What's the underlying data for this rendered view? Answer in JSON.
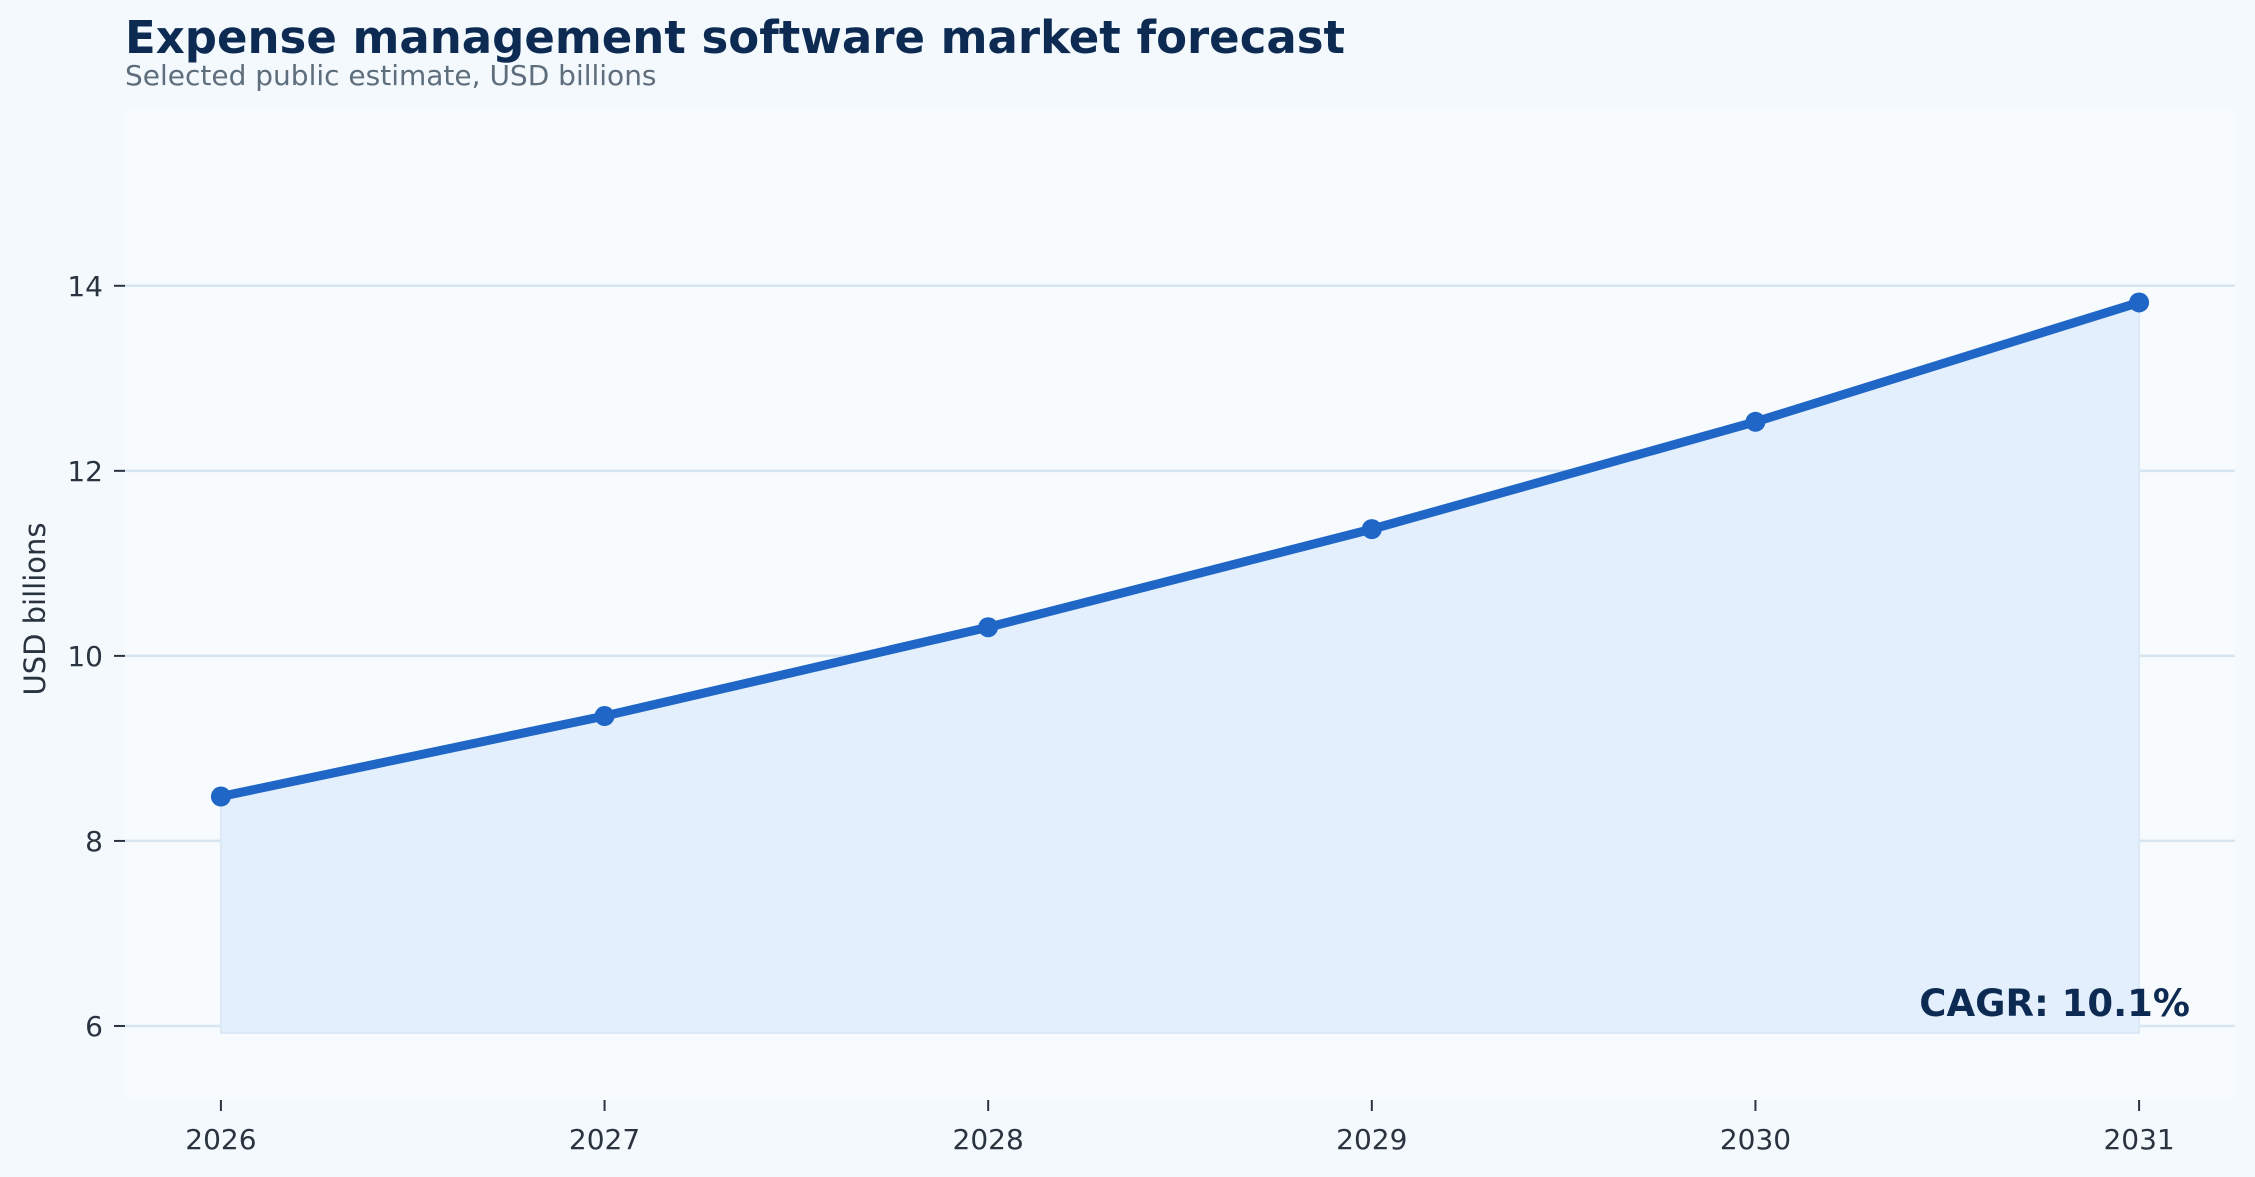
{
  "chart_data": {
    "type": "line",
    "title": "Expense management software market forecast",
    "subtitle": "Selected public estimate, USD billions",
    "xlabel": "",
    "ylabel": "USD billions",
    "x": [
      2026,
      2027,
      2028,
      2029,
      2030,
      2031
    ],
    "x_tick_labels": [
      "2026",
      "2027",
      "2028",
      "2029",
      "2030",
      "2031"
    ],
    "series": [
      {
        "values": [
          8.48,
          9.35,
          10.31,
          11.37,
          12.53,
          13.82
        ],
        "filled_area": true
      }
    ],
    "y_ticks": [
      6,
      8,
      10,
      12,
      14
    ],
    "y_tick_labels": [
      "6",
      "8",
      "10",
      "12",
      "14"
    ],
    "xlim": [
      2025.75,
      2031.25
    ],
    "ylim": [
      5.2,
      15.9
    ],
    "grid": "horizontal",
    "annotation": "CAGR: 10.1%",
    "colors": {
      "page_background": "#f4f9fd",
      "plot_background": "#f7fbfe",
      "line": "#1f66c7",
      "area_fill": "#e3effc",
      "grid": "#d6e5f0",
      "title": "#0d2b52",
      "subtitle": "#5e6e7c",
      "tick_text": "#2a3340",
      "annotation": "#0d2b52"
    }
  }
}
